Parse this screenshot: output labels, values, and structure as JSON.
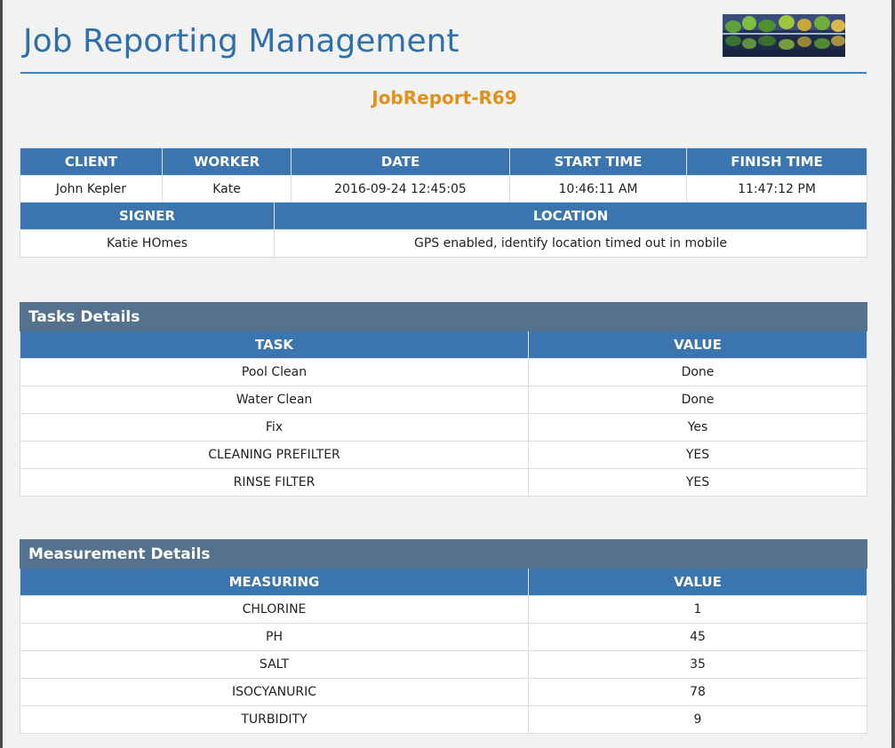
{
  "header": {
    "title": "Job Reporting Management",
    "report_id": "JobReport-R69",
    "logo_icon": "landscape-logo"
  },
  "job_info": {
    "columns": [
      "CLIENT",
      "WORKER",
      "DATE",
      "START TIME",
      "FINISH TIME"
    ],
    "values": [
      "John Kepler",
      "Kate",
      "2016-09-24 12:45:05",
      "10:46:11 AM",
      "11:47:12 PM"
    ]
  },
  "sign_info": {
    "columns": [
      "SIGNER",
      "LOCATION"
    ],
    "values": [
      "Katie HOmes",
      "GPS enabled, identify location timed out in mobile"
    ]
  },
  "tasks": {
    "section_title": "Tasks Details",
    "columns": [
      "TASK",
      "VALUE"
    ],
    "rows": [
      [
        "Pool Clean",
        "Done"
      ],
      [
        "Water Clean",
        "Done"
      ],
      [
        "Fix",
        "Yes"
      ],
      [
        "CLEANING PREFILTER",
        "YES"
      ],
      [
        "RINSE FILTER",
        "YES"
      ]
    ]
  },
  "measurements": {
    "section_title": "Measurement Details",
    "columns": [
      "MEASURING",
      "VALUE"
    ],
    "rows": [
      [
        "CHLORINE",
        "1"
      ],
      [
        "PH",
        "45"
      ],
      [
        "SALT",
        "35"
      ],
      [
        "ISOCYANURIC",
        "78"
      ],
      [
        "TURBIDITY",
        "9"
      ]
    ]
  },
  "colors": {
    "title": "#2f6fae",
    "report_id": "#e0911a",
    "header_cell": "#3a75b0",
    "section_header": "#54718e"
  }
}
